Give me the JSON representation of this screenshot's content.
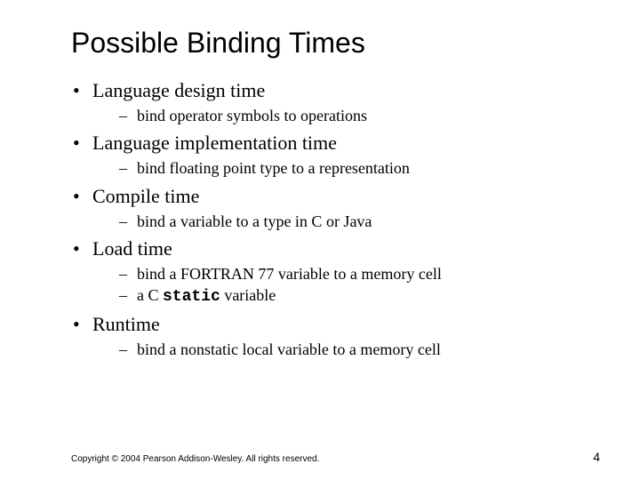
{
  "title": "Possible Binding Times",
  "bullets": [
    {
      "label": "Language design time",
      "subs": [
        {
          "text": "bind operator symbols to operations"
        }
      ]
    },
    {
      "label": "Language implementation time",
      "subs": [
        {
          "text": "bind floating point type to a representation"
        }
      ]
    },
    {
      "label": "Compile time",
      "subs": [
        {
          "text": "bind a variable to a type in C or Java"
        }
      ]
    },
    {
      "label": "Load time",
      "subs": [
        {
          "text_pre": "bind a FORTRAN 77 variable to a memory cell"
        },
        {
          "text_pre": "a C ",
          "code": "static",
          "text_post": " variable"
        }
      ]
    },
    {
      "label": "Runtime",
      "subs": [
        {
          "text": "bind a nonstatic local variable to a memory cell"
        }
      ]
    }
  ],
  "footer": "Copyright © 2004 Pearson Addison-Wesley. All rights reserved.",
  "page_number": "4"
}
